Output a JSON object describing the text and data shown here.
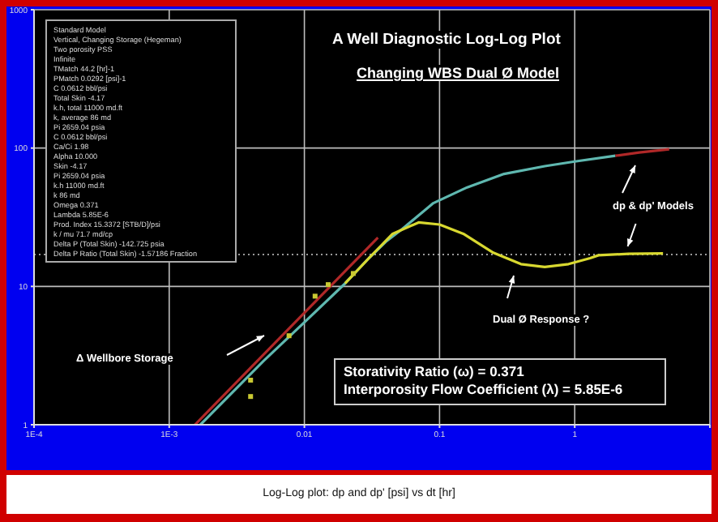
{
  "chart_data": {
    "type": "line",
    "title": "A Well Diagnostic Log-Log Plot",
    "subtitle": "Changing WBS Dual Ø Model",
    "xlabel": "Log-Log plot: dp and dp'  [psi] vs dt [hr]",
    "log": "xy",
    "grid": true,
    "line_style": "solid",
    "xlim": [
      0.0001,
      10
    ],
    "xticks": [
      {
        "value": 0.0001,
        "label": "1E-4"
      },
      {
        "value": 0.001,
        "label": "1E-3"
      },
      0.01,
      0.1,
      1,
      {
        "value": 10,
        "label": null
      }
    ],
    "ylim": [
      1,
      1000
    ],
    "yticks": [
      1,
      10,
      100,
      1000
    ],
    "series": [
      {
        "color": "#b02828",
        "x": [
          0.00155,
          0.035
        ],
        "values": [
          1,
          22.5
        ]
      },
      {
        "color": "#5fb8b0",
        "x": [
          0.0017,
          0.005,
          0.01,
          0.02,
          0.03,
          0.04,
          0.053,
          0.09,
          0.16,
          0.3,
          0.6,
          1,
          2
        ],
        "values": [
          1,
          2.9,
          5.5,
          10.5,
          16,
          21,
          26,
          40,
          52,
          65,
          74,
          80,
          88
        ]
      },
      {
        "color": "#b02828",
        "x": [
          2,
          3,
          5
        ],
        "values": [
          88,
          93,
          98
        ]
      },
      {
        "color": "#d8d830",
        "x": [
          0.02,
          0.03,
          0.045,
          0.07,
          0.1,
          0.15,
          0.25,
          0.4,
          0.6,
          0.9,
          1.3,
          1.5,
          2.5,
          4.5
        ],
        "values": [
          10.5,
          16,
          24,
          29,
          28,
          24,
          17.5,
          14.5,
          13.8,
          14.5,
          16,
          16.8,
          17.2,
          17.3
        ]
      },
      {
        "type": "scatter",
        "marker": "square",
        "color": "#c8c832",
        "x": [
          0.004,
          0.004,
          0.0077,
          0.012,
          0.015,
          0.023
        ],
        "values": [
          2.1,
          1.6,
          4.4,
          8.5,
          10.3,
          12.4
        ]
      }
    ],
    "ref_lines": [
      {
        "axis": "y",
        "value": 17,
        "color": "#9a9a9a",
        "line_style": "dotted"
      }
    ],
    "annotations": [
      "Standard Model",
      "Vertical, Changing Storage (Hegeman)",
      "Two porosity PSS",
      "Infinite",
      "TMatch 44.2 [hr]-1",
      "PMatch 0.0292 [psi]-1",
      "C 0.0612 bbl/psi",
      "Total Skin -4.17",
      "k.h, total 11000 md.ft",
      "k, average 86 md",
      "Pi 2659.04 psia",
      "C 0.0612 bbl/psi",
      "Ca/Ci 1.98",
      "Alpha 10.000",
      "Skin -4.17",
      "Pi 2659.04 psia",
      "k.h 11000 md.ft",
      "k 86 md",
      "Omega 0.371",
      "Lambda 5.85E-6",
      "Prod. Index 15.3372 [STB/D]/psi",
      "k / mu 71.7 md/cp",
      "Delta P (Total Skin) -142.725 psia",
      "Delta P Ratio (Total Skin) -1.57186 Fraction",
      "Δ Wellbore Storage",
      "Dual Ø Response ?",
      "dp & dp' Models",
      "Storativity Ratio  (ω) = 0.371",
      "Interporosity Flow Coefficient  (λ) = 5.85E-6"
    ]
  }
}
